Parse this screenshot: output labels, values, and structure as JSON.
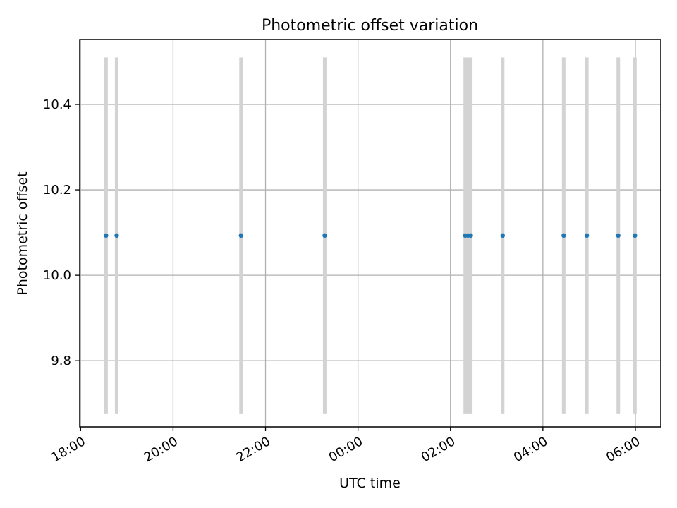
{
  "chart_data": {
    "type": "scatter",
    "title": "Photometric offset variation",
    "xlabel": "UTC time",
    "ylabel": "Photometric offset",
    "x_unit": "UTC hours (continuing past midnight)",
    "xlim": [
      17.98,
      30.55
    ],
    "ylim": [
      9.645,
      10.552
    ],
    "x_ticks": [
      {
        "value": 18,
        "label": "18:00"
      },
      {
        "value": 20,
        "label": "20:00"
      },
      {
        "value": 22,
        "label": "22:00"
      },
      {
        "value": 24,
        "label": "00:00"
      },
      {
        "value": 26,
        "label": "02:00"
      },
      {
        "value": 28,
        "label": "04:00"
      },
      {
        "value": 30,
        "label": "06:00"
      }
    ],
    "y_ticks": [
      {
        "value": 9.8,
        "label": "9.8"
      },
      {
        "value": 10.0,
        "label": "10.0"
      },
      {
        "value": 10.2,
        "label": "10.2"
      },
      {
        "value": 10.4,
        "label": "10.4"
      }
    ],
    "grid": true,
    "points": [
      {
        "x": 18.55,
        "y": 10.093
      },
      {
        "x": 18.78,
        "y": 10.093
      },
      {
        "x": 21.47,
        "y": 10.093
      },
      {
        "x": 23.28,
        "y": 10.093
      },
      {
        "x": 26.32,
        "y": 10.093
      },
      {
        "x": 26.38,
        "y": 10.093
      },
      {
        "x": 26.44,
        "y": 10.093
      },
      {
        "x": 27.13,
        "y": 10.093
      },
      {
        "x": 28.45,
        "y": 10.093
      },
      {
        "x": 28.95,
        "y": 10.093
      },
      {
        "x": 29.63,
        "y": 10.093
      },
      {
        "x": 29.99,
        "y": 10.093
      }
    ],
    "error_bars": {
      "color": "#d3d3d3",
      "y_range": [
        9.675,
        10.51
      ]
    },
    "colors": {
      "points": "#1f77b4",
      "bars": "#d3d3d3",
      "grid": "#b0b0b0"
    }
  }
}
